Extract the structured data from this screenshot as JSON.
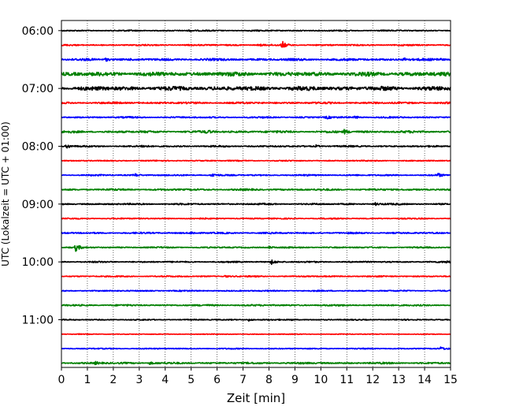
{
  "chart_data": {
    "type": "line",
    "title": "",
    "xlabel": "Zeit  [min]",
    "ylabel": "UTC (Lokalzeit = UTC + 01:00)",
    "xlim": [
      0,
      15
    ],
    "x_ticks": [
      "0",
      "1",
      "2",
      "3",
      "4",
      "5",
      "6",
      "7",
      "8",
      "9",
      "10",
      "11",
      "12",
      "13",
      "14",
      "15"
    ],
    "y_tick_labels": [
      "06:00",
      "07:00",
      "08:00",
      "09:00",
      "10:00",
      "11:00"
    ],
    "ylim_rows": [
      -0.7,
      23.3
    ],
    "grid": "vertical dotted",
    "colors": [
      "#000000",
      "#ff0000",
      "#0000ff",
      "#008000"
    ],
    "rows": [
      {
        "time": "06:00",
        "color": "#000000",
        "amp": 0.8,
        "events": [
          {
            "t": 4.9,
            "a": 1.0
          }
        ]
      },
      {
        "time": "06:15",
        "color": "#ff0000",
        "amp": 0.9,
        "events": [
          {
            "t": 8.5,
            "a": 5.0
          },
          {
            "t": 7.6,
            "a": 1.5
          }
        ]
      },
      {
        "time": "06:30",
        "color": "#0000ff",
        "amp": 1.4,
        "events": [
          {
            "t": 1.7,
            "a": 2.0
          },
          {
            "t": 13.2,
            "a": 2.0
          },
          {
            "t": 14.5,
            "a": 1.5
          }
        ]
      },
      {
        "time": "06:45",
        "color": "#008000",
        "amp": 2.6,
        "events": []
      },
      {
        "time": "07:00",
        "color": "#000000",
        "amp": 2.6,
        "events": []
      },
      {
        "time": "07:15",
        "color": "#ff0000",
        "amp": 1.2,
        "events": []
      },
      {
        "time": "07:30",
        "color": "#0000ff",
        "amp": 1.0,
        "events": [
          {
            "t": 10.2,
            "a": 2.0
          },
          {
            "t": 11.3,
            "a": 1.8
          }
        ]
      },
      {
        "time": "07:45",
        "color": "#008000",
        "amp": 1.4,
        "events": [
          {
            "t": 5.6,
            "a": 2.0
          },
          {
            "t": 10.9,
            "a": 2.2
          }
        ]
      },
      {
        "time": "08:00",
        "color": "#000000",
        "amp": 1.0,
        "events": [
          {
            "t": 0.2,
            "a": 2.5
          },
          {
            "t": 3.1,
            "a": 1.5
          },
          {
            "t": 9.8,
            "a": 1.5
          }
        ]
      },
      {
        "time": "08:15",
        "color": "#ff0000",
        "amp": 0.7,
        "events": []
      },
      {
        "time": "08:30",
        "color": "#0000ff",
        "amp": 0.9,
        "events": [
          {
            "t": 2.8,
            "a": 2.2
          },
          {
            "t": 5.8,
            "a": 2.5
          },
          {
            "t": 14.5,
            "a": 2.0
          }
        ]
      },
      {
        "time": "08:45",
        "color": "#008000",
        "amp": 1.1,
        "events": []
      },
      {
        "time": "09:00",
        "color": "#000000",
        "amp": 1.0,
        "events": [
          {
            "t": 12.1,
            "a": 1.5
          }
        ]
      },
      {
        "time": "09:15",
        "color": "#ff0000",
        "amp": 0.8,
        "events": []
      },
      {
        "time": "09:30",
        "color": "#0000ff",
        "amp": 1.0,
        "events": [
          {
            "t": 5.0,
            "a": 1.5
          }
        ]
      },
      {
        "time": "09:45",
        "color": "#008000",
        "amp": 0.9,
        "events": [
          {
            "t": 0.55,
            "a": 4.5
          },
          {
            "t": 8.0,
            "a": 1.5
          }
        ]
      },
      {
        "time": "10:00",
        "color": "#000000",
        "amp": 0.9,
        "events": [
          {
            "t": 8.1,
            "a": 3.0
          },
          {
            "t": 14.8,
            "a": 1.5
          }
        ]
      },
      {
        "time": "10:15",
        "color": "#ff0000",
        "amp": 0.8,
        "events": [
          {
            "t": 6.3,
            "a": 1.2
          }
        ]
      },
      {
        "time": "10:30",
        "color": "#0000ff",
        "amp": 0.8,
        "events": []
      },
      {
        "time": "10:45",
        "color": "#008000",
        "amp": 1.0,
        "events": []
      },
      {
        "time": "11:00",
        "color": "#000000",
        "amp": 0.7,
        "events": [
          {
            "t": 7.2,
            "a": 1.8
          },
          {
            "t": 8.8,
            "a": 1.2
          }
        ]
      },
      {
        "time": "11:15",
        "color": "#ff0000",
        "amp": 0.5,
        "events": []
      },
      {
        "time": "11:30",
        "color": "#0000ff",
        "amp": 0.7,
        "events": [
          {
            "t": 14.6,
            "a": 2.0
          }
        ]
      },
      {
        "time": "11:45",
        "color": "#008000",
        "amp": 1.1,
        "events": [
          {
            "t": 1.3,
            "a": 1.5
          },
          {
            "t": 3.4,
            "a": 1.5
          }
        ]
      }
    ]
  }
}
